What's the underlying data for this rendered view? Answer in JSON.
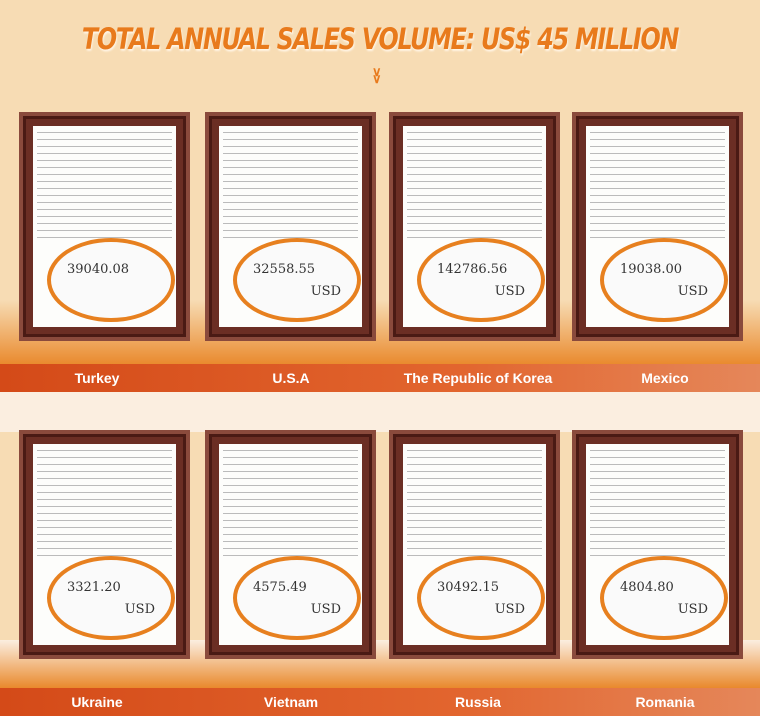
{
  "title": "TOTAL ANNUAL SALES VOLUME: US$ 45 MILLION",
  "chevron_icon": "double-chevron-down",
  "accent": "#e87a1c",
  "certificates": [
    {
      "country": "Turkey",
      "amount": "39040.08",
      "currency": ""
    },
    {
      "country": "U.S.A",
      "amount": "32558.55",
      "currency": "USD"
    },
    {
      "country": "The Republic of Korea",
      "amount": "142786.56",
      "currency": "USD"
    },
    {
      "country": "Mexico",
      "amount": "19038.00",
      "currency": "USD"
    },
    {
      "country": "Ukraine",
      "amount": "3321.20",
      "currency": "USD"
    },
    {
      "country": "Vietnam",
      "amount": "4575.49",
      "currency": "USD"
    },
    {
      "country": "Russia",
      "amount": "30492.15",
      "currency": "USD"
    },
    {
      "country": "Romania",
      "amount": "4804.80",
      "currency": "USD"
    }
  ]
}
